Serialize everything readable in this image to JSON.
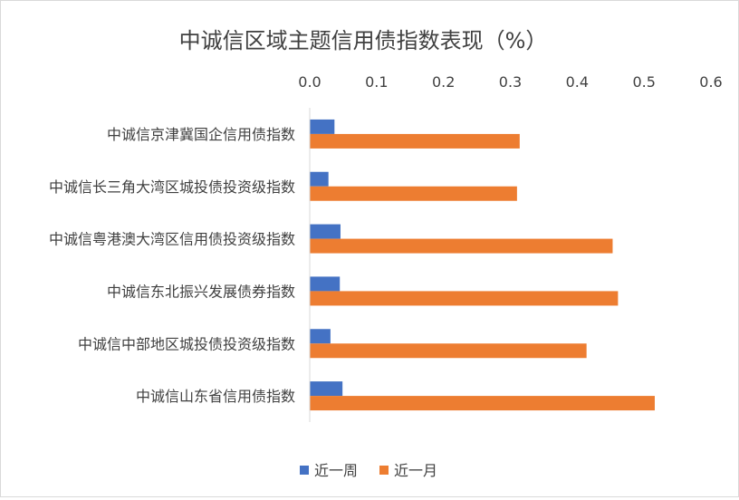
{
  "chart_data": {
    "type": "bar",
    "orientation": "horizontal",
    "title": "中诚信区域主题信用债指数表现（%）",
    "categories": [
      "中诚信京津冀国企信用债指数",
      "中诚信长三角大湾区城投债投资级指数",
      "中诚信粤港澳大湾区信用债投资级指数",
      "中诚信东北振兴发展债券指数",
      "中诚信中部地区城投债投资级指数",
      "中诚信山东省信用债指数"
    ],
    "series": [
      {
        "name": "近一周",
        "color": "#4472c4",
        "values": [
          0.037,
          0.028,
          0.046,
          0.045,
          0.031,
          0.049
        ]
      },
      {
        "name": "近一月",
        "color": "#ed7d31",
        "values": [
          0.314,
          0.31,
          0.453,
          0.461,
          0.414,
          0.516
        ]
      }
    ],
    "xlim": [
      0,
      0.6
    ],
    "xticks": [
      "0.0",
      "0.1",
      "0.2",
      "0.3",
      "0.4",
      "0.5",
      "0.6"
    ],
    "axis_position": "top",
    "grid": false,
    "legend": "bottom"
  }
}
